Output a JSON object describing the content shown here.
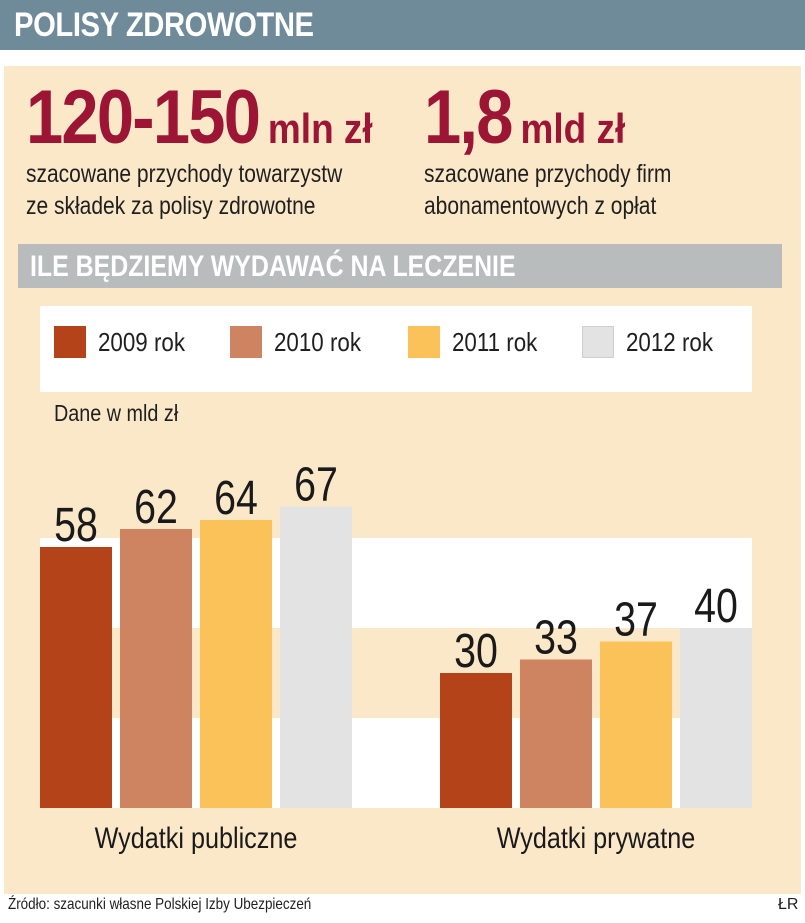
{
  "header": {
    "title": "POLISY ZDROWOTNE"
  },
  "stats": [
    {
      "value": "120-150",
      "unit": "mln zł",
      "description": "szacowane przychody towarzystw ze składek za polisy zdrowotne"
    },
    {
      "value": "1,8",
      "unit": "mld zł",
      "description": "szacowane przychody firm abonamentowych z opłat"
    }
  ],
  "section": {
    "title": "ILE BĘDZIEMY WYDAWAĆ NA LECZENIE"
  },
  "units_note": "Dane w mld zł",
  "footer": {
    "source": "Źródło: szacunki własne Polskiej Izby Ubezpieczeń",
    "credit": "ŁR"
  },
  "colors": {
    "accent": "#9c1535",
    "header_bg": "#6f8a98",
    "panel_bg": "#fbe8c9"
  },
  "chart_data": {
    "type": "bar",
    "categories": [
      "Wydatki publiczne",
      "Wydatki prywatne"
    ],
    "series": [
      {
        "name": "2009 rok",
        "color": "#b5431a",
        "values": [
          58,
          30
        ]
      },
      {
        "name": "2010 rok",
        "color": "#cf8461",
        "values": [
          62,
          33
        ]
      },
      {
        "name": "2011 rok",
        "color": "#fcc25a",
        "values": [
          64,
          37
        ]
      },
      {
        "name": "2012 rok",
        "color": "#e3e3e3",
        "values": [
          67,
          40
        ]
      }
    ],
    "ylabel": "Dane w mld zł",
    "ylim": [
      0,
      80
    ],
    "legend": "top",
    "grid": true
  }
}
